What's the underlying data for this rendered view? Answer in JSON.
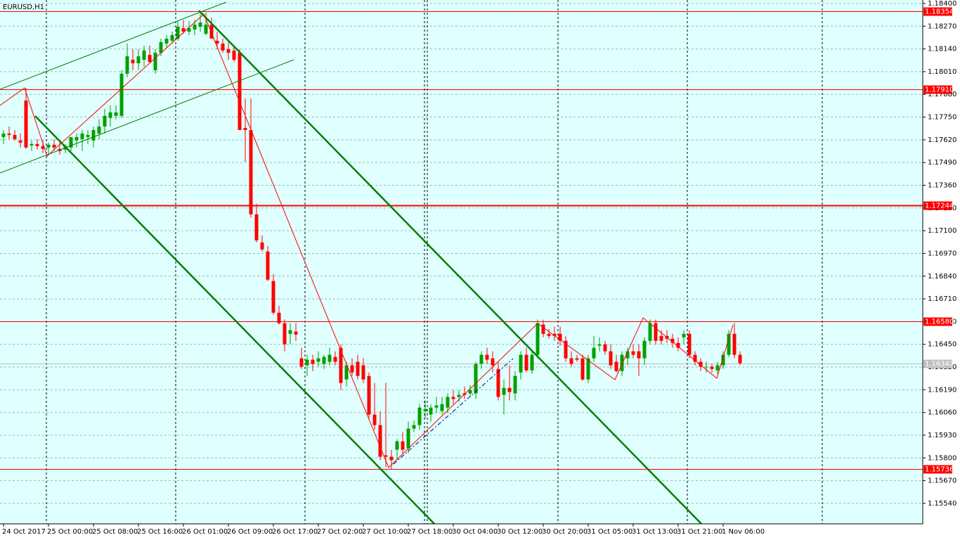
{
  "chart_data": {
    "type": "candlestick",
    "title": "EURUSD,H1",
    "categories": [
      "24 Oct 2017",
      null,
      null,
      null,
      null,
      null,
      null,
      null,
      "25 Oct 00:00",
      null,
      null,
      null,
      null,
      null,
      null,
      null,
      "25 Oct 08:00",
      null,
      null,
      null,
      null,
      null,
      null,
      null,
      "25 Oct 16:00",
      null,
      null,
      null,
      null,
      null,
      null,
      null,
      "26 Oct 01:00",
      null,
      null,
      null,
      null,
      null,
      null,
      null,
      "26 Oct 09:00",
      null,
      null,
      null,
      null,
      null,
      null,
      null,
      "26 Oct 17:00",
      null,
      null,
      null,
      null,
      null,
      null,
      null,
      "27 Oct 02:00",
      null,
      null,
      null,
      null,
      null,
      null,
      null,
      "27 Oct 10:00",
      null,
      null,
      null,
      null,
      null,
      null,
      null,
      "27 Oct 18:00",
      null,
      null,
      null,
      null,
      null,
      null,
      null,
      "30 Oct 04:00",
      null,
      null,
      null,
      null,
      null,
      null,
      null,
      "30 Oct 12:00",
      null,
      null,
      null,
      null,
      null,
      null,
      null,
      "30 Oct 20:00",
      null,
      null,
      null,
      null,
      null,
      null,
      null,
      "31 Oct 05:00",
      null,
      null,
      null,
      null,
      null,
      null,
      null,
      "31 Oct 13:00",
      null,
      null,
      null,
      null,
      null,
      null,
      null,
      "31 Oct 21:00",
      null,
      null,
      null,
      null,
      null,
      null,
      null,
      "1 Nov 06:00",
      null,
      null,
      null
    ],
    "candles": [
      [
        1.17636,
        1.17676,
        1.17596,
        1.17656
      ],
      [
        1.17656,
        1.17696,
        1.17624,
        1.17648
      ],
      [
        1.17648,
        1.17676,
        1.17616,
        1.17624
      ],
      [
        1.17616,
        1.17656,
        1.17576,
        1.17604
      ],
      [
        1.17845,
        1.17917,
        1.17568,
        1.17576
      ],
      [
        1.17588,
        1.17616,
        1.17556,
        1.17596
      ],
      [
        1.17596,
        1.17624,
        1.17564,
        1.17584
      ],
      [
        1.17584,
        1.17616,
        1.17544,
        1.17568
      ],
      [
        1.17576,
        1.17604,
        1.17536,
        1.17592
      ],
      [
        1.17592,
        1.17624,
        1.17556,
        1.17576
      ],
      [
        1.17568,
        1.17616,
        1.17536,
        1.17556
      ],
      [
        1.17564,
        1.17596,
        1.17544,
        1.17584
      ],
      [
        1.17576,
        1.17636,
        1.17556,
        1.17636
      ],
      [
        1.17616,
        1.17656,
        1.17576,
        1.17636
      ],
      [
        1.17624,
        1.17676,
        1.17556,
        1.17656
      ],
      [
        1.17636,
        1.17676,
        1.17596,
        1.17648
      ],
      [
        1.17616,
        1.17696,
        1.17576,
        1.17676
      ],
      [
        1.17656,
        1.17737,
        1.17624,
        1.17696
      ],
      [
        1.17696,
        1.17797,
        1.17656,
        1.17757
      ],
      [
        1.17745,
        1.17817,
        1.17696,
        1.17777
      ],
      [
        1.17757,
        1.17817,
        1.17737,
        1.17777
      ],
      [
        1.17757,
        1.18018,
        1.17745,
        1.17998
      ],
      [
        1.17998,
        1.18171,
        1.17978,
        1.18098
      ],
      [
        1.18078,
        1.18139,
        1.18018,
        1.18058
      ],
      [
        1.18058,
        1.18139,
        1.18018,
        1.18098
      ],
      [
        1.18078,
        1.18159,
        1.18038,
        1.18131
      ],
      [
        1.18106,
        1.18159,
        1.18058,
        1.18066
      ],
      [
        1.18018,
        1.18139,
        1.17998,
        1.18118
      ],
      [
        1.18118,
        1.18199,
        1.18098,
        1.18179
      ],
      [
        1.18171,
        1.18219,
        1.18147,
        1.18199
      ],
      [
        1.18187,
        1.18239,
        1.18171,
        1.18219
      ],
      [
        1.18199,
        1.18299,
        1.18187,
        1.18267
      ],
      [
        1.18259,
        1.18307,
        1.18227,
        1.18239
      ],
      [
        1.18239,
        1.18299,
        1.18219,
        1.18259
      ],
      [
        1.18251,
        1.18307,
        1.18219,
        1.18279
      ],
      [
        1.18267,
        1.1834,
        1.18239,
        1.18291
      ],
      [
        1.18227,
        1.18348,
        1.18219,
        1.18279
      ],
      [
        1.18279,
        1.18319,
        1.18199,
        1.18199
      ],
      [
        1.18187,
        1.18239,
        1.18139,
        1.18171
      ],
      [
        1.18171,
        1.18199,
        1.18118,
        1.18131
      ],
      [
        1.18139,
        1.18179,
        1.18078,
        1.18118
      ],
      [
        1.18131,
        1.18159,
        1.18066,
        1.18078
      ],
      [
        1.18118,
        1.18139,
        1.17676,
        1.17676
      ],
      [
        1.17688,
        1.17857,
        1.17495,
        1.17676
      ],
      [
        1.17676,
        1.17857,
        1.17174,
        1.17194
      ],
      [
        1.17194,
        1.17254,
        1.17033,
        1.17045
      ],
      [
        1.17033,
        1.17073,
        1.16981,
        1.16993
      ],
      [
        1.16981,
        1.17013,
        1.16812,
        1.1682
      ],
      [
        1.16812,
        1.16852,
        1.16619,
        1.16631
      ],
      [
        1.16631,
        1.16671,
        1.16563,
        1.16571
      ],
      [
        1.16571,
        1.16591,
        1.1641,
        1.1645
      ],
      [
        1.1651,
        1.16571,
        1.1645,
        1.16531
      ],
      [
        1.16523,
        1.16571,
        1.1647,
        1.16506
      ],
      [
        1.1637,
        1.1643,
        1.16309,
        1.16322
      ],
      [
        1.1633,
        1.1639,
        1.16269,
        1.16362
      ],
      [
        1.16362,
        1.1639,
        1.16297,
        1.16338
      ],
      [
        1.1635,
        1.1641,
        1.16322,
        1.1637
      ],
      [
        1.16338,
        1.1639,
        1.16309,
        1.16378
      ],
      [
        1.1635,
        1.1643,
        1.1633,
        1.1639
      ],
      [
        1.16378,
        1.1641,
        1.1633,
        1.1635
      ],
      [
        1.1643,
        1.1645,
        1.16189,
        1.16229
      ],
      [
        1.16249,
        1.1635,
        1.16209,
        1.1633
      ],
      [
        1.1633,
        1.1637,
        1.16269,
        1.16289
      ],
      [
        1.1635,
        1.1639,
        1.16249,
        1.16269
      ],
      [
        1.1633,
        1.1637,
        1.16229,
        1.16249
      ],
      [
        1.16269,
        1.16289,
        1.16028,
        1.16048
      ],
      [
        1.16048,
        1.16229,
        1.1596,
        1.15988
      ],
      [
        1.15988,
        1.16068,
        1.15787,
        1.15807
      ],
      [
        1.15815,
        1.16229,
        1.15747,
        1.15807
      ],
      [
        1.15807,
        1.15847,
        1.15735,
        1.15787
      ],
      [
        1.15847,
        1.15907,
        1.15787,
        1.15895
      ],
      [
        1.15895,
        1.15948,
        1.15827,
        1.15847
      ],
      [
        1.15855,
        1.16008,
        1.15827,
        1.15968
      ],
      [
        1.15968,
        1.16016,
        1.15948,
        1.15988
      ],
      [
        1.15988,
        1.16108,
        1.1596,
        1.16088
      ],
      [
        1.16068,
        1.16129,
        1.16028,
        1.1608
      ],
      [
        1.16048,
        1.16108,
        1.16008,
        1.16088
      ],
      [
        1.16088,
        1.16149,
        1.16056,
        1.161
      ],
      [
        1.16068,
        1.16149,
        1.16048,
        1.16108
      ],
      [
        1.16088,
        1.16169,
        1.16056,
        1.16149
      ],
      [
        1.16149,
        1.16189,
        1.16108,
        1.16137
      ],
      [
        1.16149,
        1.16189,
        1.16121,
        1.16161
      ],
      [
        1.16169,
        1.16209,
        1.16137,
        1.16161
      ],
      [
        1.16169,
        1.16217,
        1.16149,
        1.16189
      ],
      [
        1.16169,
        1.1635,
        1.16137,
        1.16338
      ],
      [
        1.16338,
        1.1641,
        1.16309,
        1.1639
      ],
      [
        1.1639,
        1.1643,
        1.16338,
        1.16362
      ],
      [
        1.1637,
        1.1641,
        1.16289,
        1.1633
      ],
      [
        1.16309,
        1.1635,
        1.16129,
        1.16149
      ],
      [
        1.16161,
        1.16249,
        1.16048,
        1.16201
      ],
      [
        1.16201,
        1.1633,
        1.16129,
        1.16177
      ],
      [
        1.16169,
        1.16297,
        1.16129,
        1.16269
      ],
      [
        1.16289,
        1.1641,
        1.16249,
        1.1639
      ],
      [
        1.1639,
        1.1643,
        1.16289,
        1.16301
      ],
      [
        1.16301,
        1.1641,
        1.16281,
        1.1639
      ],
      [
        1.1639,
        1.16591,
        1.1637,
        1.16571
      ],
      [
        1.16563,
        1.16591,
        1.1649,
        1.1651
      ],
      [
        1.1651,
        1.16539,
        1.16482,
        1.16498
      ],
      [
        1.1651,
        1.16551,
        1.1647,
        1.16498
      ],
      [
        1.1651,
        1.16551,
        1.16442,
        1.1647
      ],
      [
        1.1647,
        1.16498,
        1.1635,
        1.1637
      ],
      [
        1.1637,
        1.1641,
        1.16322,
        1.16338
      ],
      [
        1.1637,
        1.1639,
        1.1635,
        1.16362
      ],
      [
        1.1637,
        1.1639,
        1.16241,
        1.16249
      ],
      [
        1.16249,
        1.1639,
        1.16229,
        1.1637
      ],
      [
        1.1637,
        1.16498,
        1.1635,
        1.1643
      ],
      [
        1.16442,
        1.1649,
        1.1641,
        1.1645
      ],
      [
        1.1645,
        1.1647,
        1.1639,
        1.1641
      ],
      [
        1.1641,
        1.1645,
        1.16309,
        1.1633
      ],
      [
        1.1635,
        1.1639,
        1.16289,
        1.16297
      ],
      [
        1.16297,
        1.1641,
        1.16269,
        1.1639
      ],
      [
        1.1637,
        1.1643,
        1.1633,
        1.1641
      ],
      [
        1.1641,
        1.1645,
        1.1637,
        1.1639
      ],
      [
        1.1641,
        1.1645,
        1.16269,
        1.1637
      ],
      [
        1.1637,
        1.1649,
        1.1633,
        1.1647
      ],
      [
        1.1647,
        1.16591,
        1.1645,
        1.16571
      ],
      [
        1.16571,
        1.16591,
        1.1645,
        1.1647
      ],
      [
        1.16498,
        1.16531,
        1.1645,
        1.1647
      ],
      [
        1.16498,
        1.16531,
        1.16458,
        1.16482
      ],
      [
        1.16482,
        1.1651,
        1.1643,
        1.16458
      ],
      [
        1.16458,
        1.1649,
        1.1641,
        1.1643
      ],
      [
        1.1649,
        1.16531,
        1.1645,
        1.1651
      ],
      [
        1.1651,
        1.16531,
        1.1637,
        1.1639
      ],
      [
        1.1639,
        1.1641,
        1.1633,
        1.1635
      ],
      [
        1.1635,
        1.1637,
        1.16297,
        1.16322
      ],
      [
        1.16322,
        1.1635,
        1.16289,
        1.16322
      ],
      [
        1.16322,
        1.16338,
        1.16289,
        1.16309
      ],
      [
        1.16301,
        1.1635,
        1.16281,
        1.1633
      ],
      [
        1.1633,
        1.1641,
        1.16309,
        1.1639
      ],
      [
        1.1639,
        1.16531,
        1.16378,
        1.1651
      ],
      [
        1.1651,
        1.16571,
        1.1637,
        1.1639
      ],
      [
        1.1639,
        1.1641,
        1.1633,
        1.16342
      ]
    ],
    "up_color": "#00a000",
    "down_color": "#ff0000",
    "ylim": [
      1.15423,
      1.1842
    ],
    "yticks": [
      {
        "value": 1.184,
        "label": "1.18400"
      },
      {
        "value": 1.1827,
        "label": "1.18270"
      },
      {
        "value": 1.1814,
        "label": "1.18140"
      },
      {
        "value": 1.1801,
        "label": "1.18010"
      },
      {
        "value": 1.1788,
        "label": "1.17880"
      },
      {
        "value": 1.1775,
        "label": "1.17750"
      },
      {
        "value": 1.1762,
        "label": "1.17620"
      },
      {
        "value": 1.1749,
        "label": "1.17490"
      },
      {
        "value": 1.1736,
        "label": "1.17360"
      },
      {
        "value": 1.1723,
        "label": "1.17230"
      },
      {
        "value": 1.171,
        "label": "1.17100"
      },
      {
        "value": 1.1697,
        "label": "1.16970"
      },
      {
        "value": 1.1684,
        "label": "1.16840"
      },
      {
        "value": 1.1671,
        "label": "1.16710"
      },
      {
        "value": 1.1658,
        "label": "1.16580"
      },
      {
        "value": 1.1645,
        "label": "1.16450"
      },
      {
        "value": 1.1632,
        "label": "1.16320"
      },
      {
        "value": 1.1619,
        "label": "1.16190"
      },
      {
        "value": 1.1606,
        "label": "1.16060"
      },
      {
        "value": 1.1593,
        "label": "1.15930"
      },
      {
        "value": 1.158,
        "label": "1.15800"
      },
      {
        "value": 1.1567,
        "label": "1.15670"
      },
      {
        "value": 1.1554,
        "label": "1.15540"
      }
    ],
    "grid": true,
    "levels": [
      {
        "value": 1.18354,
        "label": "1.18354",
        "color": "#ff0000"
      },
      {
        "value": 1.1791,
        "label": "1.17910",
        "color": "#ff0000"
      },
      {
        "value": 1.17244,
        "label": "1.17244",
        "color": "#ff0000",
        "thick": true
      },
      {
        "value": 1.1658,
        "label": "1.16580",
        "color": "#ff0000"
      },
      {
        "value": 1.15736,
        "label": "1.15736",
        "color": "#ff0000"
      },
      {
        "value": 1.16342,
        "label": "1.16342",
        "color": "#c0c0c0"
      }
    ]
  }
}
